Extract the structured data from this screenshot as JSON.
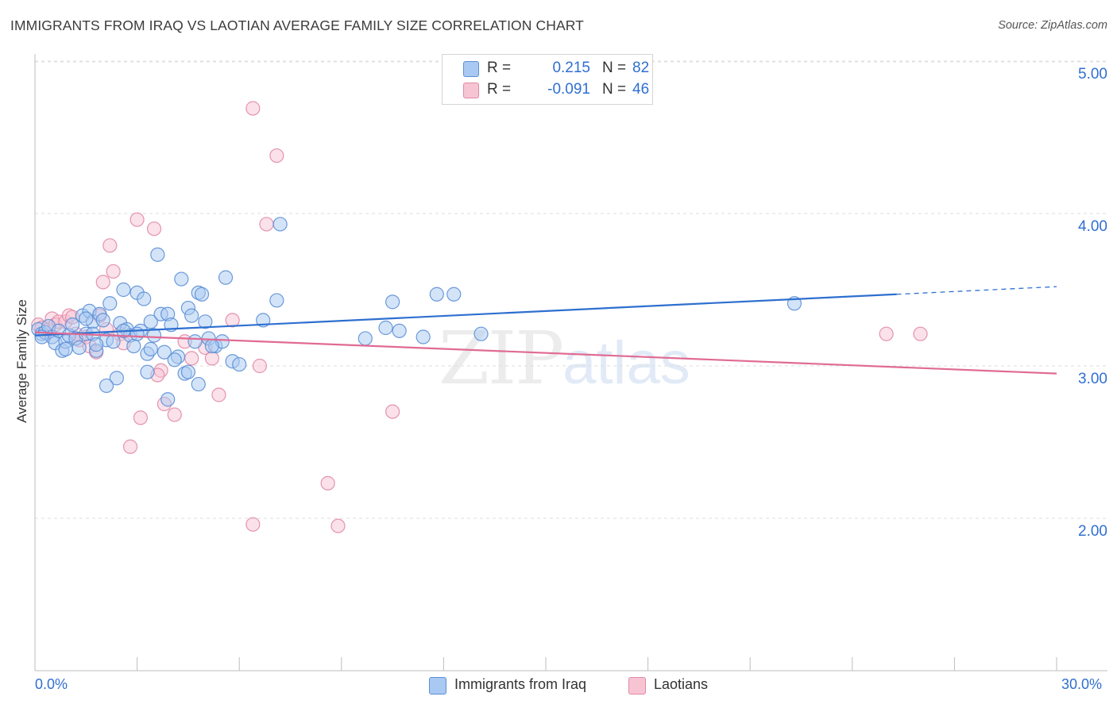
{
  "title": "IMMIGRANTS FROM IRAQ VS LAOTIAN AVERAGE FAMILY SIZE CORRELATION CHART",
  "source": "Source: ZipAtlas.com",
  "watermark": {
    "zip": "ZIP",
    "atlas": "atlas"
  },
  "legend": {
    "rows": [
      {
        "r_label": "R =",
        "r_value": "0.215",
        "n_label": "N =",
        "n_value": "82",
        "color": "#a9c9f2",
        "border": "#5b8fd6"
      },
      {
        "r_label": "R =",
        "r_value": "-0.091",
        "n_label": "N =",
        "n_value": "46",
        "color": "#f7c4d4",
        "border": "#e18aa6"
      }
    ]
  },
  "bottom_legend": [
    {
      "label": "Immigrants from Iraq",
      "color": "#a9c9f2",
      "border": "#5b8fd6"
    },
    {
      "label": "Laotians",
      "color": "#f7c4d4",
      "border": "#e18aa6"
    }
  ],
  "colors": {
    "blue_line": "#2e6fcf",
    "pink_line": "#e06b93",
    "blue_fill": "#a9c9f2",
    "pink_fill": "#f7c4d4",
    "axis_text": "#2f6fd0"
  },
  "chart_data": {
    "type": "scatter",
    "title": "IMMIGRANTS FROM IRAQ VS LAOTIAN AVERAGE FAMILY SIZE CORRELATION CHART",
    "xlabel": "",
    "ylabel": "Average Family Size",
    "xlim": [
      0,
      30
    ],
    "ylim": [
      1.0,
      5.15
    ],
    "x_tick_labels": [
      "0.0%",
      "30.0%"
    ],
    "y_ticks": [
      2.0,
      3.0,
      4.0,
      5.0
    ],
    "y_tick_labels": [
      "2.00",
      "3.00",
      "4.00",
      "5.00"
    ],
    "grid": "horizontal dashed",
    "series": [
      {
        "name": "Immigrants from Iraq",
        "color": "#5b8fd6",
        "trend": {
          "x": [
            0,
            25.3
          ],
          "y": [
            3.2,
            3.47
          ],
          "dashed_extension": {
            "x": [
              25.3,
              30
            ],
            "y": [
              3.47,
              3.52
            ]
          }
        },
        "points": [
          [
            0.1,
            3.24
          ],
          [
            0.2,
            3.21
          ],
          [
            0.3,
            3.22
          ],
          [
            0.4,
            3.26
          ],
          [
            0.5,
            3.19
          ],
          [
            0.6,
            3.15
          ],
          [
            0.7,
            3.23
          ],
          [
            0.8,
            3.1
          ],
          [
            0.9,
            3.16
          ],
          [
            1.0,
            3.2
          ],
          [
            1.1,
            3.27
          ],
          [
            1.2,
            3.18
          ],
          [
            1.3,
            3.12
          ],
          [
            1.4,
            3.33
          ],
          [
            1.5,
            3.21
          ],
          [
            1.6,
            3.36
          ],
          [
            1.7,
            3.29
          ],
          [
            1.8,
            3.1
          ],
          [
            1.9,
            3.34
          ],
          [
            2.0,
            3.3
          ],
          [
            2.1,
            3.17
          ],
          [
            2.2,
            3.41
          ],
          [
            2.3,
            3.16
          ],
          [
            2.4,
            2.92
          ],
          [
            2.5,
            3.28
          ],
          [
            2.6,
            3.5
          ],
          [
            2.7,
            3.24
          ],
          [
            2.8,
            3.2
          ],
          [
            2.9,
            3.13
          ],
          [
            3.0,
            3.48
          ],
          [
            3.1,
            3.23
          ],
          [
            3.2,
            3.44
          ],
          [
            3.3,
            3.08
          ],
          [
            3.4,
            3.29
          ],
          [
            3.5,
            3.2
          ],
          [
            3.6,
            3.73
          ],
          [
            3.7,
            3.34
          ],
          [
            3.8,
            3.09
          ],
          [
            3.9,
            3.34
          ],
          [
            4.0,
            3.27
          ],
          [
            4.2,
            3.06
          ],
          [
            4.3,
            3.57
          ],
          [
            4.4,
            2.95
          ],
          [
            4.5,
            3.38
          ],
          [
            4.6,
            3.33
          ],
          [
            4.7,
            3.16
          ],
          [
            4.8,
            3.48
          ],
          [
            4.9,
            3.47
          ],
          [
            5.0,
            3.29
          ],
          [
            5.1,
            3.18
          ],
          [
            5.3,
            3.13
          ],
          [
            5.5,
            3.16
          ],
          [
            5.6,
            3.58
          ],
          [
            5.8,
            3.03
          ],
          [
            6.0,
            3.01
          ],
          [
            6.7,
            3.3
          ],
          [
            7.1,
            3.43
          ],
          [
            7.2,
            3.93
          ],
          [
            9.7,
            3.18
          ],
          [
            10.3,
            3.25
          ],
          [
            10.5,
            3.42
          ],
          [
            10.7,
            3.23
          ],
          [
            11.4,
            3.19
          ],
          [
            11.8,
            3.47
          ],
          [
            12.3,
            3.47
          ],
          [
            13.1,
            3.21
          ],
          [
            22.3,
            3.41
          ],
          [
            0.2,
            3.19
          ],
          [
            0.9,
            3.11
          ],
          [
            1.5,
            3.31
          ],
          [
            1.7,
            3.21
          ],
          [
            1.8,
            3.14
          ],
          [
            2.1,
            2.87
          ],
          [
            2.6,
            3.23
          ],
          [
            3.0,
            3.21
          ],
          [
            3.3,
            2.96
          ],
          [
            3.4,
            3.11
          ],
          [
            3.9,
            2.78
          ],
          [
            4.1,
            3.04
          ],
          [
            4.5,
            2.96
          ],
          [
            4.8,
            2.88
          ],
          [
            5.2,
            3.13
          ]
        ]
      },
      {
        "name": "Laotians",
        "color": "#e18aa6",
        "trend": {
          "x": [
            0,
            30
          ],
          "y": [
            3.22,
            2.95
          ]
        },
        "points": [
          [
            0.1,
            3.27
          ],
          [
            0.2,
            3.25
          ],
          [
            0.3,
            3.22
          ],
          [
            0.4,
            3.24
          ],
          [
            0.5,
            3.31
          ],
          [
            0.6,
            3.27
          ],
          [
            0.7,
            3.29
          ],
          [
            0.9,
            3.29
          ],
          [
            1.0,
            3.33
          ],
          [
            1.1,
            3.32
          ],
          [
            1.2,
            3.21
          ],
          [
            1.3,
            3.17
          ],
          [
            1.5,
            3.19
          ],
          [
            1.6,
            3.13
          ],
          [
            1.8,
            3.09
          ],
          [
            2.0,
            3.55
          ],
          [
            2.1,
            3.24
          ],
          [
            2.2,
            3.79
          ],
          [
            2.3,
            3.62
          ],
          [
            2.5,
            3.21
          ],
          [
            2.6,
            3.15
          ],
          [
            2.8,
            2.47
          ],
          [
            3.0,
            3.96
          ],
          [
            3.1,
            2.66
          ],
          [
            3.5,
            3.9
          ],
          [
            3.7,
            2.97
          ],
          [
            3.8,
            2.75
          ],
          [
            4.1,
            2.68
          ],
          [
            4.4,
            3.16
          ],
          [
            4.6,
            3.05
          ],
          [
            5.0,
            3.12
          ],
          [
            5.2,
            3.05
          ],
          [
            5.4,
            2.81
          ],
          [
            5.8,
            3.3
          ],
          [
            6.4,
            4.69
          ],
          [
            6.6,
            3.0
          ],
          [
            6.8,
            3.93
          ],
          [
            7.1,
            4.38
          ],
          [
            8.6,
            2.23
          ],
          [
            8.9,
            1.95
          ],
          [
            10.5,
            2.7
          ],
          [
            6.4,
            1.96
          ],
          [
            25.0,
            3.21
          ],
          [
            26.0,
            3.21
          ],
          [
            1.9,
            3.33
          ],
          [
            3.6,
            2.94
          ]
        ]
      }
    ]
  }
}
